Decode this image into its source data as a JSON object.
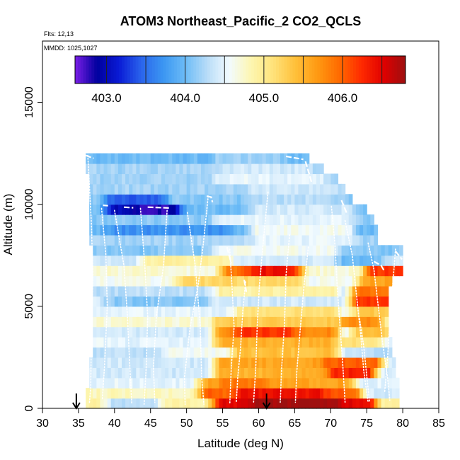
{
  "chart_data": {
    "type": "heatmap",
    "title": "ATOM3 Northeast_Pacific_2 CO2_QCLS",
    "notes": [
      "Flts: 12,13",
      "MMDD: 1025,1027"
    ],
    "xlabel": "Latitude (deg N)",
    "ylabel": "Altitude (m)",
    "xlim": [
      30,
      85
    ],
    "ylim": [
      0,
      18000
    ],
    "xticks": [
      "30",
      "35",
      "40",
      "45",
      "50",
      "55",
      "60",
      "65",
      "70",
      "75",
      "80",
      "85"
    ],
    "yticks": [
      "0",
      "5000",
      "10000",
      "15000"
    ],
    "colorbar": {
      "range": [
        402.6,
        406.8
      ],
      "tick_labels": [
        "403.0",
        "404.0",
        "405.0",
        "406.0"
      ],
      "tick_values": [
        403.0,
        404.0,
        405.0,
        406.0
      ],
      "palette": [
        "#7a1ee6",
        "#00009e",
        "#0a1bd6",
        "#2a64ec",
        "#3b96f2",
        "#6cbcf6",
        "#b8dcf8",
        "#f2fbff",
        "#fdf6b0",
        "#ffe27a",
        "#ffc03a",
        "#ff9a12",
        "#ff6a00",
        "#ff2a00",
        "#e00000",
        "#9c1010"
      ]
    },
    "markers": [
      {
        "label": "arrow",
        "latitude": 34.7
      },
      {
        "label": "arrow",
        "latitude": 61.1
      }
    ],
    "altitude_bins_m": [
      0,
      500,
      1000,
      1500,
      2000,
      2500,
      3000,
      3500,
      4000,
      4500,
      5000,
      5500,
      6000,
      6500,
      7000,
      7500,
      8000,
      8500,
      9000,
      9500,
      10000,
      10500,
      11000,
      11500,
      12000
    ],
    "rows": [
      {
        "alt": 250,
        "lat": [
          36.0,
          79.5
        ],
        "bg": 404.9,
        "features": [
          [
            55,
            75,
            406.5,
            12
          ],
          [
            60,
            70,
            406.8,
            6
          ],
          [
            40,
            45,
            404.3,
            3
          ]
        ]
      },
      {
        "alt": 750,
        "lat": [
          36.0,
          79.5
        ],
        "bg": 404.8,
        "features": [
          [
            53,
            73,
            406.0,
            14
          ],
          [
            58,
            68,
            406.4,
            6
          ],
          [
            76,
            79,
            404.4,
            2
          ]
        ]
      },
      {
        "alt": 1250,
        "lat": [
          36.5,
          79.5
        ],
        "bg": 404.5,
        "features": [
          [
            53,
            72,
            405.6,
            10
          ],
          [
            56,
            60,
            405.9,
            3
          ]
        ]
      },
      {
        "alt": 1750,
        "lat": [
          36.5,
          79.0
        ],
        "bg": 404.4,
        "features": [
          [
            55,
            72,
            405.5,
            12
          ],
          [
            71,
            75,
            406.3,
            3
          ]
        ]
      },
      {
        "alt": 2250,
        "lat": [
          36.5,
          79.0
        ],
        "bg": 404.4,
        "features": [
          [
            55,
            70,
            405.6,
            12
          ],
          [
            70,
            76,
            406.0,
            3
          ]
        ]
      },
      {
        "alt": 2750,
        "lat": [
          37.0,
          78.5
        ],
        "bg": 404.3,
        "features": [
          [
            55,
            70,
            405.4,
            12
          ],
          [
            48,
            55,
            404.6,
            4
          ]
        ]
      },
      {
        "alt": 3250,
        "lat": [
          37.0,
          78.5
        ],
        "bg": 404.5,
        "features": [
          [
            55,
            70,
            405.5,
            10
          ],
          [
            72,
            76,
            405.1,
            3
          ]
        ]
      },
      {
        "alt": 3750,
        "lat": [
          37.0,
          78.0
        ],
        "bg": 404.4,
        "features": [
          [
            55,
            70,
            405.8,
            10
          ],
          [
            58,
            64,
            406.2,
            4
          ],
          [
            74,
            77,
            405.4,
            2
          ]
        ]
      },
      {
        "alt": 4250,
        "lat": [
          37.0,
          78.0
        ],
        "bg": 404.7,
        "features": [
          [
            55,
            72,
            405.3,
            10
          ],
          [
            73,
            76,
            405.8,
            2
          ]
        ]
      },
      {
        "alt": 4750,
        "lat": [
          37.0,
          78.0
        ],
        "bg": 404.5,
        "features": [
          [
            58,
            70,
            405.1,
            10
          ],
          [
            74,
            78,
            405.3,
            3
          ]
        ]
      },
      {
        "alt": 5250,
        "lat": [
          37.0,
          78.0
        ],
        "bg": 404.4,
        "features": [
          [
            40,
            52,
            404.1,
            6
          ],
          [
            74,
            78,
            406.2,
            2
          ]
        ]
      },
      {
        "alt": 5750,
        "lat": [
          37.0,
          78.0
        ],
        "bg": 404.3,
        "features": [
          [
            55,
            70,
            404.9,
            10
          ],
          [
            74,
            78,
            405.9,
            2
          ]
        ]
      },
      {
        "alt": 6250,
        "lat": [
          37.0,
          78.5
        ],
        "bg": 404.6,
        "features": [
          [
            50,
            65,
            405.2,
            8
          ],
          [
            75,
            79,
            405.6,
            2
          ]
        ]
      },
      {
        "alt": 6750,
        "lat": [
          37.0,
          80.0
        ],
        "bg": 404.7,
        "features": [
          [
            56,
            65,
            405.9,
            6
          ],
          [
            76,
            80,
            406.2,
            3
          ],
          [
            60,
            64,
            406.4,
            2
          ]
        ]
      },
      {
        "alt": 7250,
        "lat": [
          37.0,
          80.0
        ],
        "bg": 404.4,
        "features": [
          [
            45,
            55,
            404.9,
            8
          ],
          [
            72,
            76,
            404.0,
            3
          ]
        ]
      },
      {
        "alt": 7750,
        "lat": [
          37.0,
          80.0
        ],
        "bg": 404.1,
        "features": [
          [
            55,
            70,
            404.6,
            8
          ]
        ]
      },
      {
        "alt": 8250,
        "lat": [
          36.5,
          76.5
        ],
        "bg": 404.2,
        "features": [
          [
            60,
            72,
            404.5,
            8
          ]
        ]
      },
      {
        "alt": 8750,
        "lat": [
          36.5,
          76.5
        ],
        "bg": 404.0,
        "features": [
          [
            40,
            55,
            403.7,
            8
          ],
          [
            60,
            72,
            404.6,
            8
          ]
        ]
      },
      {
        "alt": 9250,
        "lat": [
          36.5,
          76.0
        ],
        "bg": 404.1,
        "features": [
          [
            55,
            72,
            404.5,
            10
          ]
        ]
      },
      {
        "alt": 9750,
        "lat": [
          36.5,
          75.0
        ],
        "bg": 404.0,
        "features": [
          [
            40,
            48,
            403.0,
            4
          ],
          [
            44,
            47,
            402.8,
            2
          ],
          [
            60,
            72,
            404.4,
            8
          ]
        ]
      },
      {
        "alt": 10250,
        "lat": [
          36.5,
          73.0
        ],
        "bg": 404.1,
        "features": [
          [
            40,
            46,
            403.4,
            4
          ],
          [
            60,
            70,
            404.3,
            8
          ]
        ]
      },
      {
        "alt": 10750,
        "lat": [
          36.5,
          72.0
        ],
        "bg": 404.2,
        "features": [
          [
            60,
            70,
            404.4,
            8
          ]
        ]
      },
      {
        "alt": 11250,
        "lat": [
          36.5,
          71.0
        ],
        "bg": 404.2,
        "features": [
          [
            55,
            68,
            404.5,
            8
          ]
        ]
      },
      {
        "alt": 11750,
        "lat": [
          36.0,
          69.0
        ],
        "bg": 404.2,
        "features": [
          [
            56,
            66,
            404.4,
            6
          ]
        ]
      },
      {
        "alt": 12250,
        "lat": [
          36.0,
          67.0
        ],
        "bg": 404.0,
        "features": [
          [
            55,
            62,
            404.2,
            6
          ]
        ]
      }
    ],
    "flight_tracks": [
      [
        [
          36.3,
          12400
        ],
        [
          36.8,
          9000
        ],
        [
          37.0,
          6500
        ],
        [
          36.8,
          4000
        ],
        [
          36.7,
          1000
        ],
        [
          36.5,
          200
        ]
      ],
      [
        [
          38.2,
          9800
        ],
        [
          38.8,
          7500
        ],
        [
          39.0,
          5000
        ],
        [
          38.6,
          2000
        ],
        [
          38.3,
          400
        ]
      ],
      [
        [
          40.0,
          9700
        ],
        [
          41.3,
          7000
        ],
        [
          41.8,
          4500
        ],
        [
          42.2,
          1500
        ],
        [
          42.4,
          200
        ]
      ],
      [
        [
          43.6,
          9800
        ],
        [
          44.2,
          7000
        ],
        [
          44.6,
          4500
        ],
        [
          44.4,
          2000
        ],
        [
          44.1,
          200
        ]
      ],
      [
        [
          47.3,
          9700
        ],
        [
          46.8,
          7000
        ],
        [
          45.8,
          4500
        ],
        [
          45.4,
          2000
        ],
        [
          45.6,
          300
        ]
      ],
      [
        [
          50.1,
          9600
        ],
        [
          51.2,
          7000
        ],
        [
          51.9,
          4000
        ],
        [
          52.1,
          1500
        ],
        [
          52.4,
          200
        ]
      ],
      [
        [
          53.0,
          10400
        ],
        [
          52.3,
          8000
        ],
        [
          51.6,
          6000
        ],
        [
          50.5,
          4000
        ],
        [
          49.7,
          1500
        ],
        [
          49.8,
          200
        ]
      ],
      [
        [
          56.0,
          7800
        ],
        [
          56.3,
          6000
        ],
        [
          56.6,
          4000
        ],
        [
          56.2,
          2000
        ],
        [
          56.0,
          200
        ]
      ],
      [
        [
          58.2,
          6200
        ],
        [
          57.8,
          4800
        ],
        [
          57.5,
          3000
        ],
        [
          57.1,
          1500
        ],
        [
          56.9,
          300
        ]
      ],
      [
        [
          61.3,
          10600
        ],
        [
          60.6,
          8000
        ],
        [
          60.1,
          6000
        ],
        [
          59.8,
          4000
        ],
        [
          59.6,
          2000
        ],
        [
          59.3,
          300
        ]
      ],
      [
        [
          64.3,
          8500
        ],
        [
          63.8,
          6500
        ],
        [
          63.6,
          4200
        ],
        [
          63.2,
          2000
        ],
        [
          63.0,
          300
        ]
      ],
      [
        [
          66.9,
          7900
        ],
        [
          66.3,
          6000
        ],
        [
          65.8,
          4000
        ],
        [
          65.3,
          1800
        ],
        [
          65.1,
          300
        ]
      ],
      [
        [
          70.1,
          9900
        ],
        [
          70.6,
          8000
        ],
        [
          70.9,
          6000
        ],
        [
          71.3,
          4000
        ],
        [
          71.7,
          2000
        ],
        [
          72.0,
          300
        ]
      ],
      [
        [
          72.0,
          9200
        ],
        [
          73.0,
          7500
        ],
        [
          73.6,
          5500
        ],
        [
          74.2,
          3500
        ],
        [
          74.6,
          1800
        ],
        [
          75.2,
          300
        ]
      ],
      [
        [
          75.2,
          8100
        ],
        [
          76.0,
          6800
        ],
        [
          76.6,
          5000
        ],
        [
          77.2,
          3200
        ],
        [
          77.9,
          1500
        ],
        [
          78.2,
          400
        ]
      ],
      [
        [
          74.0,
          4400
        ],
        [
          74.6,
          3000
        ],
        [
          75.0,
          1600
        ],
        [
          75.4,
          300
        ]
      ],
      [
        [
          79.0,
          7800
        ],
        [
          78.6,
          6000
        ],
        [
          78.2,
          4200
        ],
        [
          77.9,
          2500
        ],
        [
          77.5,
          800
        ]
      ]
    ],
    "flight_tracks_solid": [
      [
        [
          36.0,
          12400
        ],
        [
          37.1,
          12250
        ]
      ],
      [
        [
          38.4,
          9950
        ],
        [
          39.1,
          9930
        ]
      ],
      [
        [
          41.3,
          9860
        ],
        [
          42.6,
          9830
        ]
      ],
      [
        [
          44.6,
          9860
        ],
        [
          47.6,
          9820
        ]
      ],
      [
        [
          52.8,
          10400
        ],
        [
          53.4,
          10350
        ],
        [
          53.6,
          10100
        ]
      ],
      [
        [
          63.8,
          12350
        ],
        [
          66.2,
          12200
        ]
      ],
      [
        [
          66.5,
          12100
        ],
        [
          67.1,
          11400
        ],
        [
          67.4,
          11000
        ]
      ],
      [
        [
          55.6,
          7900
        ],
        [
          56.2,
          7100
        ]
      ],
      [
        [
          58.0,
          6300
        ],
        [
          58.3,
          5700
        ]
      ],
      [
        [
          76.0,
          7200
        ],
        [
          77.0,
          7000
        ],
        [
          77.5,
          6700
        ]
      ],
      [
        [
          79.0,
          7700
        ],
        [
          79.9,
          7300
        ]
      ],
      [
        [
          71.5,
          10200
        ],
        [
          72.3,
          9500
        ]
      ]
    ]
  }
}
